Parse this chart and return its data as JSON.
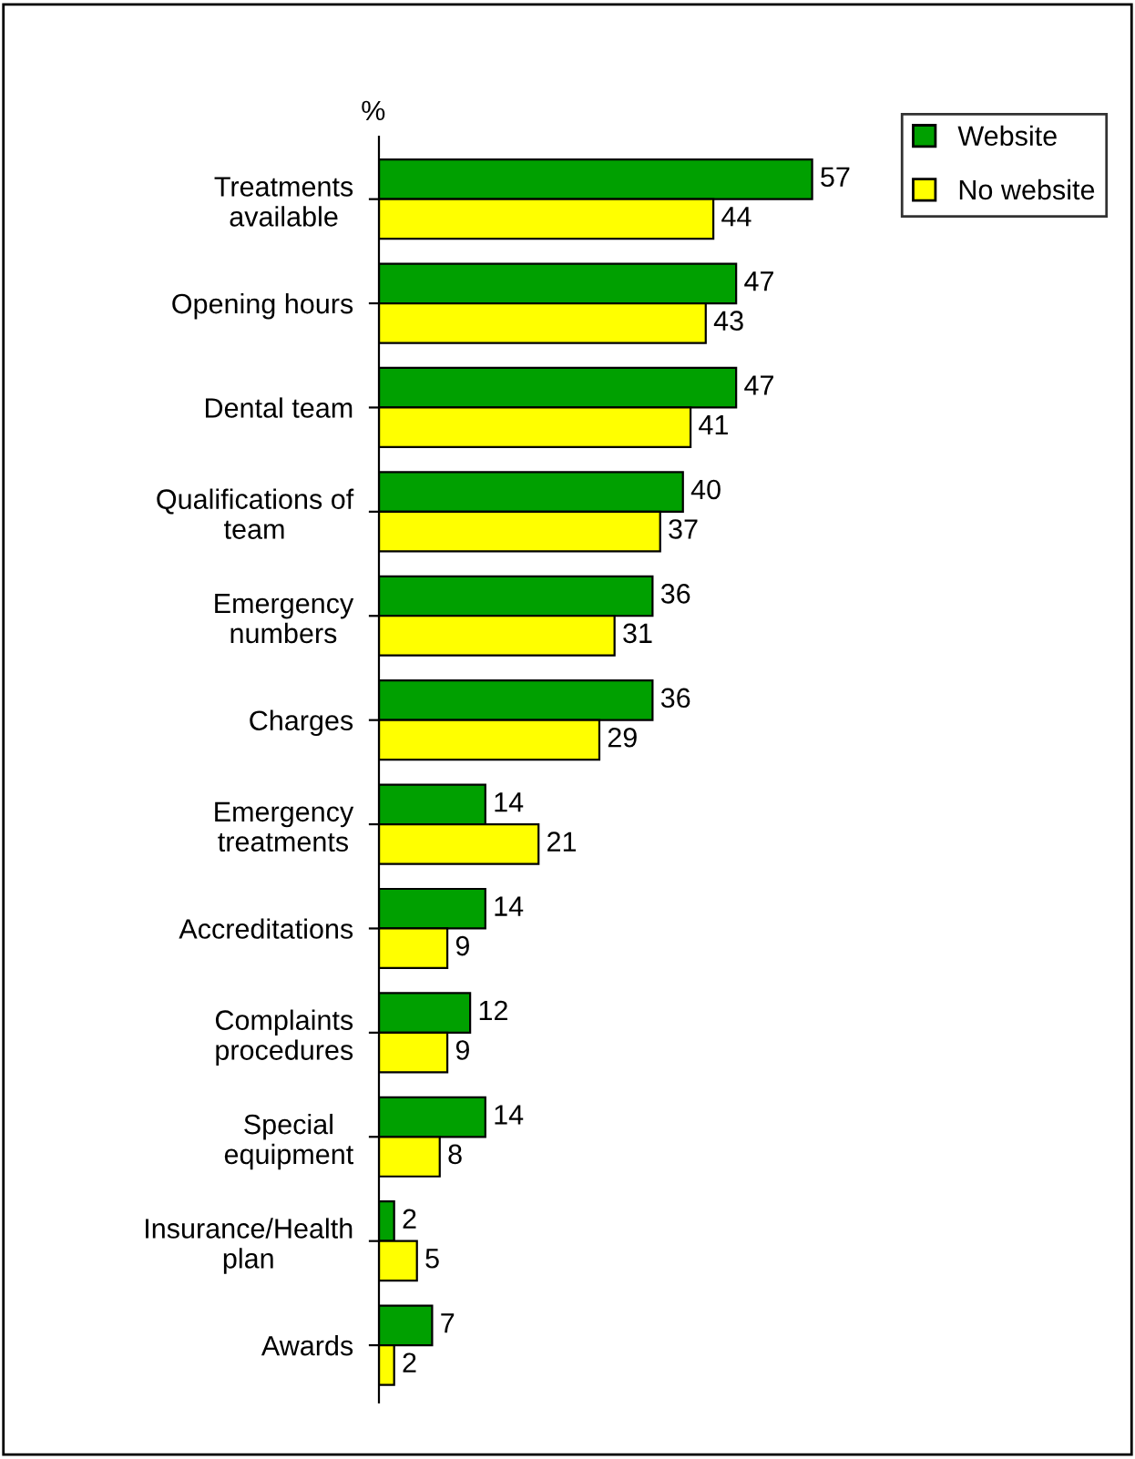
{
  "chart_data": {
    "type": "bar",
    "orientation": "horizontal",
    "xlabel": "%",
    "categories": [
      "Treatments\navailable",
      "Opening hours",
      "Dental team",
      "Qualifications of\nteam",
      "Emergency\nnumbers",
      "Charges",
      "Emergency\ntreatments",
      "Accreditations",
      "Complaints\nprocedures",
      "Special\nequipment",
      "Insurance/Health\nplan",
      "Awards"
    ],
    "series": [
      {
        "name": "Website",
        "color": "#00a000",
        "values": [
          57,
          47,
          47,
          40,
          36,
          36,
          14,
          14,
          12,
          14,
          2,
          7
        ]
      },
      {
        "name": "No website",
        "color": "#ffff00",
        "values": [
          44,
          43,
          41,
          37,
          31,
          29,
          21,
          9,
          9,
          8,
          5,
          2
        ]
      }
    ],
    "data_labels": true,
    "legend": "top right",
    "grid": false
  }
}
